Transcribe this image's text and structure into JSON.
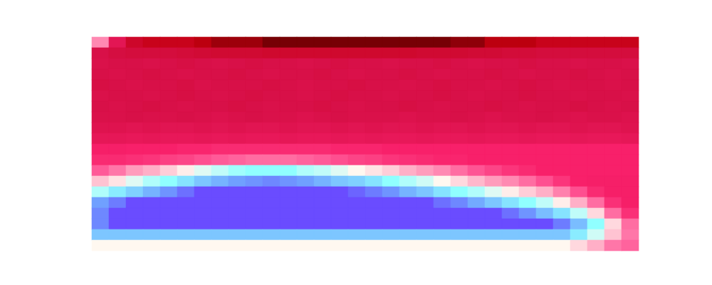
{
  "chart_data": {
    "type": "heatmap",
    "tick_labels": false,
    "zlim": [
      0,
      100
    ],
    "cells": [
      [
        60,
        35,
        22,
        18,
        18,
        18,
        14,
        10,
        10,
        10,
        5,
        5,
        5,
        5,
        5,
        5,
        5,
        5,
        5,
        5,
        5,
        8,
        8,
        14,
        14,
        14,
        18,
        18,
        18,
        18,
        18,
        18
      ],
      [
        30,
        28,
        27,
        27,
        27,
        26,
        25,
        24,
        24,
        24,
        23,
        23,
        23,
        23,
        23,
        23,
        23,
        23,
        23,
        24,
        24,
        24,
        25,
        25,
        26,
        26,
        27,
        27,
        27,
        27,
        27,
        27
      ],
      [
        31,
        30,
        30,
        31,
        30,
        29,
        30,
        31,
        30,
        29,
        30,
        30,
        31,
        30,
        29,
        30,
        30,
        31,
        30,
        30,
        29,
        30,
        31,
        30,
        30,
        29,
        30,
        30,
        31,
        30,
        30,
        31
      ],
      [
        30,
        31,
        30,
        29,
        30,
        31,
        30,
        30,
        29,
        30,
        31,
        30,
        30,
        29,
        30,
        31,
        30,
        30,
        29,
        30,
        31,
        30,
        30,
        29,
        30,
        31,
        30,
        30,
        29,
        30,
        31,
        30
      ],
      [
        29,
        30,
        31,
        30,
        30,
        29,
        31,
        30,
        30,
        30,
        29,
        30,
        31,
        30,
        30,
        29,
        30,
        30,
        31,
        30,
        29,
        30,
        30,
        31,
        30,
        29,
        30,
        31,
        30,
        30,
        31,
        30
      ],
      [
        31,
        30,
        30,
        31,
        30,
        29,
        30,
        31,
        30,
        29,
        30,
        30,
        31,
        30,
        29,
        30,
        30,
        31,
        30,
        30,
        29,
        30,
        31,
        30,
        30,
        29,
        30,
        30,
        31,
        30,
        30,
        31
      ],
      [
        30,
        31,
        30,
        29,
        30,
        31,
        30,
        30,
        29,
        30,
        31,
        30,
        30,
        29,
        30,
        31,
        30,
        30,
        29,
        30,
        31,
        30,
        30,
        29,
        30,
        31,
        30,
        30,
        29,
        30,
        31,
        30
      ],
      [
        31,
        31,
        30,
        31,
        31,
        30,
        31,
        32,
        31,
        30,
        31,
        31,
        32,
        31,
        30,
        31,
        31,
        31,
        32,
        31,
        31,
        30,
        31,
        32,
        31,
        31,
        30,
        31,
        32,
        31,
        31,
        32
      ],
      [
        33,
        33,
        34,
        33,
        34,
        34,
        33,
        34,
        33,
        34,
        34,
        33,
        34,
        34,
        33,
        34,
        33,
        34,
        34,
        33,
        34,
        34,
        33,
        34,
        34,
        33,
        34,
        34,
        33,
        34,
        34,
        33
      ],
      [
        36,
        36,
        37,
        36,
        37,
        37,
        36,
        37,
        36,
        37,
        37,
        36,
        37,
        37,
        36,
        37,
        36,
        37,
        37,
        36,
        37,
        37,
        36,
        37,
        37,
        36,
        37,
        37,
        36,
        37,
        37,
        36
      ],
      [
        43,
        43,
        44,
        44,
        44,
        45,
        45,
        46,
        46,
        46,
        46,
        46,
        46,
        46,
        45,
        45,
        45,
        44,
        44,
        44,
        44,
        44,
        44,
        44,
        44,
        44,
        44,
        44,
        44,
        44,
        44,
        44
      ],
      [
        46,
        46,
        47,
        48,
        50,
        51,
        53,
        55,
        56,
        57,
        57,
        57,
        56,
        55,
        53,
        51,
        50,
        48,
        47,
        46,
        45,
        45,
        44,
        44,
        44,
        44,
        44,
        44,
        44,
        44,
        44,
        44
      ],
      [
        55,
        58,
        62,
        64,
        67,
        70,
        73,
        75,
        77,
        78,
        78,
        78,
        76,
        75,
        73,
        71,
        69,
        67,
        64,
        62,
        60,
        57,
        54,
        51,
        48,
        46,
        44,
        44,
        44,
        44,
        44,
        44
      ],
      [
        66,
        69,
        73,
        76,
        78,
        81,
        84,
        86,
        88,
        89,
        90,
        89,
        88,
        86,
        84,
        83,
        81,
        78,
        76,
        74,
        71,
        68,
        65,
        62,
        60,
        57,
        53,
        48,
        44,
        43,
        43,
        43
      ],
      [
        76,
        80,
        83,
        86,
        89,
        92,
        95,
        95,
        95,
        95,
        95,
        95,
        95,
        95,
        95,
        93,
        91,
        89,
        86,
        84,
        81,
        78,
        76,
        73,
        70,
        67,
        64,
        59,
        53,
        46,
        43,
        43
      ],
      [
        88,
        91,
        95,
        95,
        95,
        95,
        95,
        95,
        95,
        95,
        95,
        95,
        95,
        95,
        95,
        95,
        95,
        95,
        95,
        95,
        92,
        90,
        87,
        84,
        81,
        78,
        75,
        70,
        64,
        57,
        47,
        43
      ],
      [
        90,
        95,
        95,
        95,
        95,
        95,
        95,
        95,
        95,
        95,
        95,
        95,
        95,
        95,
        95,
        95,
        95,
        95,
        95,
        95,
        95,
        95,
        95,
        95,
        92,
        89,
        85,
        81,
        75,
        68,
        57,
        47
      ],
      [
        90,
        95,
        95,
        95,
        95,
        95,
        95,
        95,
        95,
        95,
        95,
        95,
        95,
        95,
        95,
        95,
        95,
        95,
        95,
        95,
        95,
        95,
        95,
        95,
        95,
        95,
        95,
        91,
        85,
        78,
        68,
        57
      ],
      [
        84,
        84,
        84,
        84,
        84,
        84,
        84,
        84,
        84,
        84,
        84,
        84,
        84,
        84,
        84,
        84,
        84,
        84,
        84,
        84,
        84,
        84,
        84,
        84,
        84,
        84,
        84,
        84,
        80,
        74,
        66,
        58
      ],
      [
        71,
        71,
        71,
        71,
        71,
        71,
        71,
        71,
        71,
        71,
        71,
        71,
        71,
        71,
        71,
        71,
        71,
        71,
        71,
        71,
        71,
        71,
        71,
        71,
        71,
        71,
        71,
        71,
        68,
        64,
        58,
        56
      ]
    ]
  }
}
